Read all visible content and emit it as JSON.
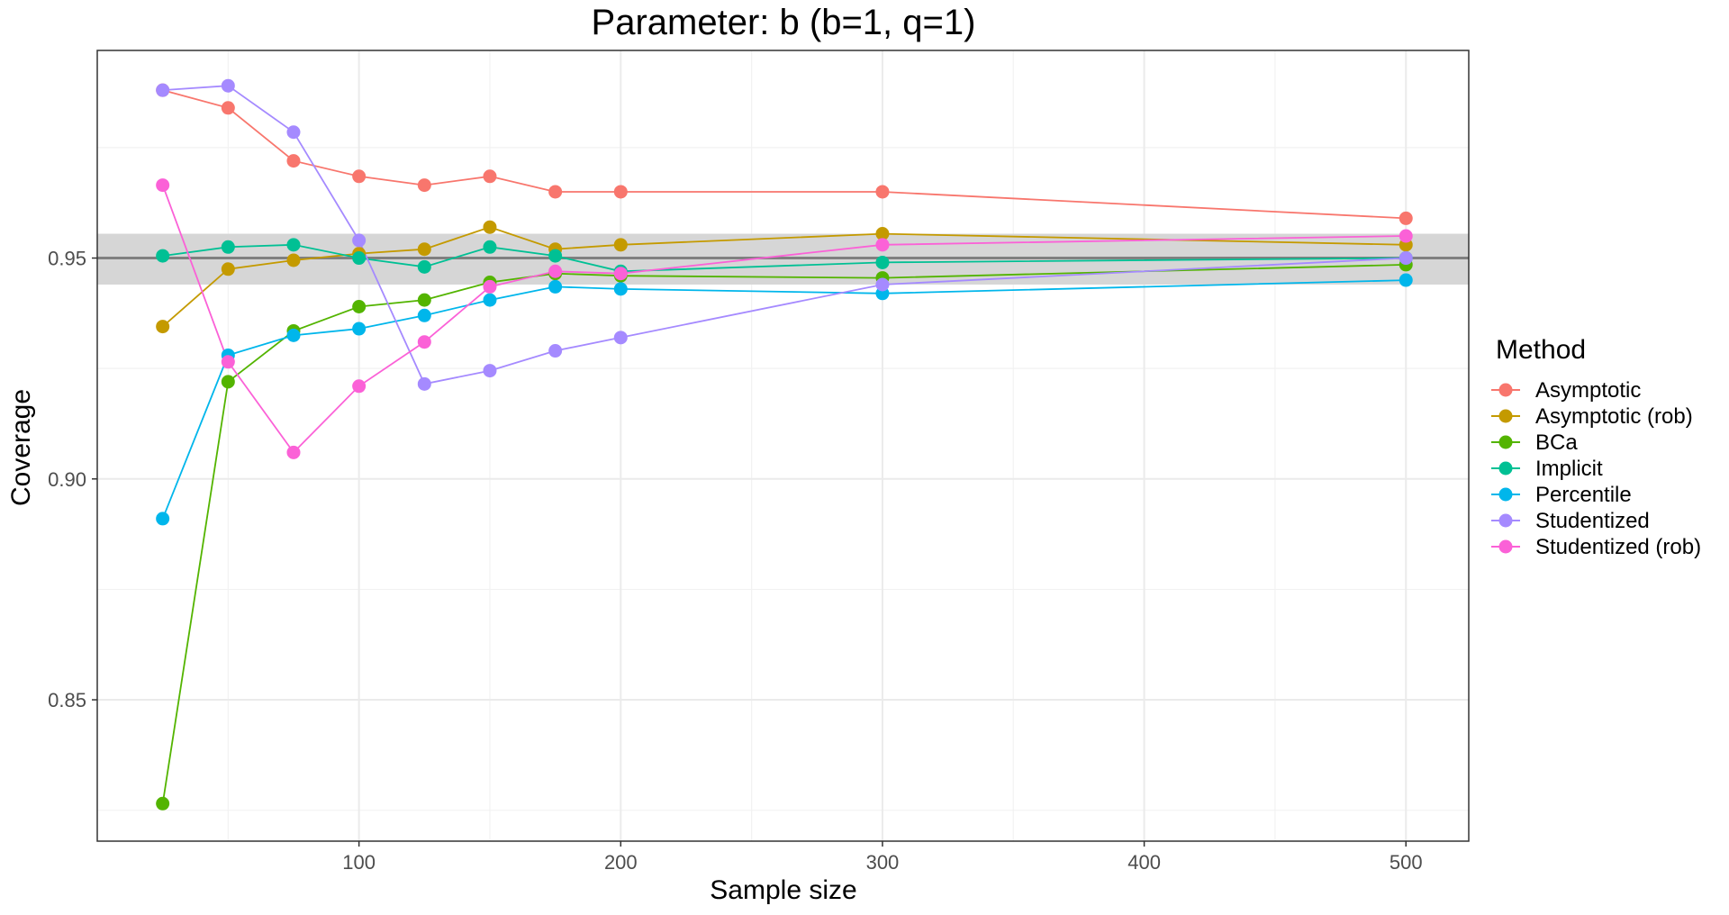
{
  "chart_data": {
    "type": "line",
    "title": "Parameter: b (b=1, q=1)",
    "xlabel": "Sample size",
    "ylabel": "Coverage",
    "xlim": [
      0,
      524
    ],
    "ylim": [
      0.818,
      0.997
    ],
    "x_ticks": [
      100,
      200,
      300,
      400,
      500
    ],
    "y_ticks": [
      0.85,
      0.9,
      0.95
    ],
    "y_tick_labels": [
      "0.85",
      "0.90",
      "0.95"
    ],
    "x_minor_ticks": [
      50,
      150,
      250,
      350,
      450
    ],
    "y_minor_ticks": [
      0.825,
      0.875,
      0.925,
      0.975
    ],
    "grid": true,
    "reference_line": 0.95,
    "reference_band": [
      0.944,
      0.9555
    ],
    "legend": {
      "title": "Method",
      "position": "right"
    },
    "x": [
      25,
      50,
      75,
      100,
      125,
      150,
      175,
      200,
      300,
      500
    ],
    "series": [
      {
        "name": "Asymptotic",
        "color": "#F8766D",
        "values": [
          0.988,
          0.984,
          0.972,
          0.9685,
          0.9665,
          0.9685,
          0.965,
          0.965,
          0.965,
          0.959
        ]
      },
      {
        "name": "Asymptotic (rob)",
        "color": "#C49A00",
        "values": [
          0.9345,
          0.9475,
          0.9495,
          0.951,
          0.952,
          0.957,
          0.952,
          0.953,
          0.9555,
          0.953
        ]
      },
      {
        "name": "BCa",
        "color": "#53B400",
        "values": [
          0.8265,
          0.922,
          0.9335,
          0.939,
          0.9405,
          0.9445,
          0.9465,
          0.946,
          0.9455,
          0.9485
        ]
      },
      {
        "name": "Implicit",
        "color": "#00C094",
        "values": [
          0.9505,
          0.9525,
          0.953,
          0.95,
          0.948,
          0.9525,
          0.9505,
          0.947,
          0.949,
          0.95
        ]
      },
      {
        "name": "Percentile",
        "color": "#00B6EB",
        "values": [
          0.891,
          0.928,
          0.9325,
          0.934,
          0.937,
          0.9405,
          0.9435,
          0.943,
          0.942,
          0.945
        ]
      },
      {
        "name": "Studentized",
        "color": "#A58AFF",
        "values": [
          0.988,
          0.989,
          0.9785,
          0.954,
          0.9215,
          0.9245,
          0.929,
          0.932,
          0.944,
          0.95
        ]
      },
      {
        "name": "Studentized (rob)",
        "color": "#FB61D7",
        "values": [
          0.9665,
          0.9265,
          0.906,
          0.921,
          0.931,
          0.9435,
          0.947,
          0.9465,
          0.953,
          0.955
        ]
      }
    ]
  }
}
